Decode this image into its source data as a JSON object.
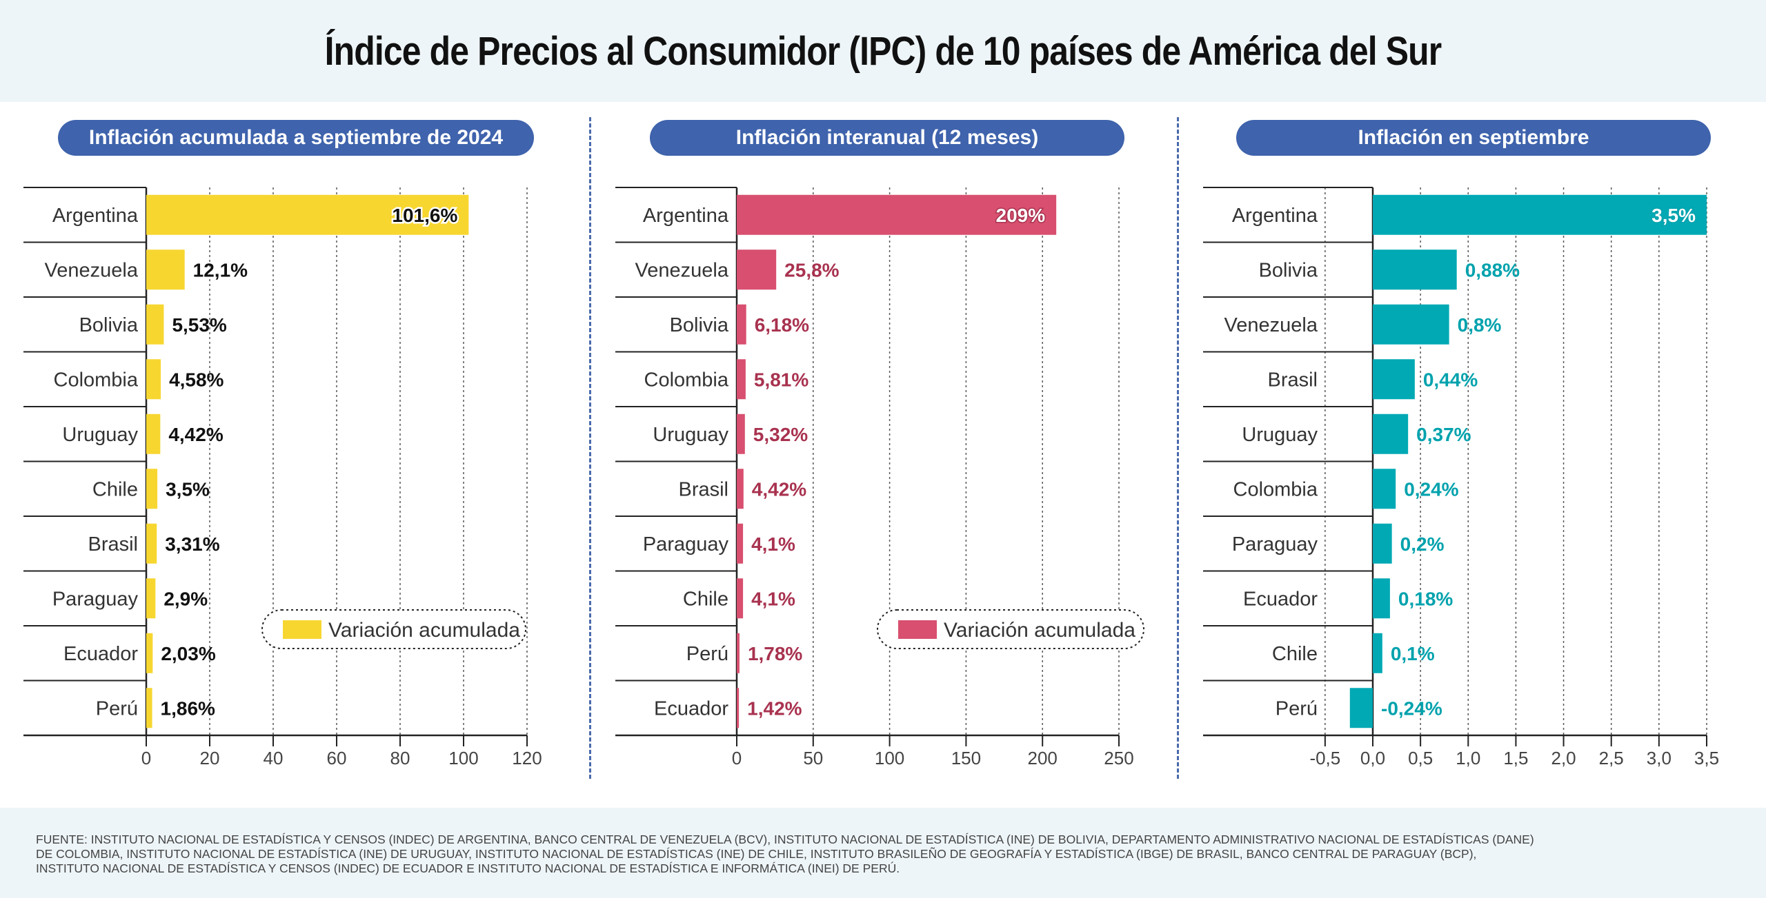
{
  "title": "Índice de Precios al Consumidor (IPC) de 10 países de América del Sur",
  "source": "FUENTE: INSTITUTO NACIONAL DE ESTADÍSTICA Y CENSOS (INDEC) DE ARGENTINA, BANCO CENTRAL DE VENEZUELA (BCV), INSTITUTO NACIONAL DE ESTADÍSTICA (INE) DE BOLIVIA, DEPARTAMENTO ADMINISTRATIVO NACIONAL DE ESTADÍSTICAS (DANE) DE COLOMBIA, INSTITUTO NACIONAL DE ESTADÍSTICA (INE) DE URUGUAY, INSTITUTO NACIONAL DE ESTADÍSTICAS (INE) DE CHILE, INSTITUTO BRASILEÑO DE GEOGRAFÍA Y ESTADÍSTICA (IBGE) DE BRASIL, BANCO CENTRAL DE PARAGUAY (BCP), INSTITUTO NACIONAL DE ESTADÍSTICA Y CENSOS (INDEC) DE ECUADOR E INSTITUTO NACIONAL DE ESTADÍSTICA E INFORMÁTICA (INEI) DE PERÚ.",
  "chart_data": [
    {
      "type": "bar",
      "orientation": "horizontal",
      "title": "Inflación acumulada a septiembre de 2024",
      "categories": [
        "Argentina",
        "Venezuela",
        "Bolivia",
        "Colombia",
        "Uruguay",
        "Chile",
        "Brasil",
        "Paraguay",
        "Ecuador",
        "Perú"
      ],
      "values": [
        101.6,
        12.1,
        5.53,
        4.58,
        4.42,
        3.5,
        3.31,
        2.9,
        2.03,
        1.86
      ],
      "value_labels": [
        "101,6%",
        "12,1%",
        "5,53%",
        "4,58%",
        "4,42%",
        "3,5%",
        "3,31%",
        "2,9%",
        "2,03%",
        "1,86%"
      ],
      "xlim": [
        0,
        120
      ],
      "ticks": [
        0,
        20,
        40,
        60,
        80,
        100,
        120
      ],
      "tick_labels": [
        "0",
        "20",
        "40",
        "60",
        "80",
        "100",
        "120"
      ],
      "grid": true,
      "color": "#f7d630",
      "label_color": "#111111",
      "legend": {
        "label": "Variación acumulada",
        "placement": "bottom-right"
      }
    },
    {
      "type": "bar",
      "orientation": "horizontal",
      "title": "Inflación interanual (12 meses)",
      "categories": [
        "Argentina",
        "Venezuela",
        "Bolivia",
        "Colombia",
        "Uruguay",
        "Brasil",
        "Paraguay",
        "Chile",
        "Perú",
        "Ecuador"
      ],
      "values": [
        209,
        25.8,
        6.18,
        5.81,
        5.32,
        4.42,
        4.1,
        4.1,
        1.78,
        1.42
      ],
      "value_labels": [
        "209%",
        "25,8%",
        "6,18%",
        "5,81%",
        "5,32%",
        "4,42%",
        "4,1%",
        "4,1%",
        "1,78%",
        "1,42%"
      ],
      "xlim": [
        0,
        250
      ],
      "ticks": [
        0,
        50,
        100,
        150,
        200,
        250
      ],
      "tick_labels": [
        "0",
        "50",
        "100",
        "150",
        "200",
        "250"
      ],
      "grid": true,
      "color": "#d84f6f",
      "label_color": "#a8324f",
      "legend": {
        "label": "Variación acumulada",
        "placement": "bottom-right"
      }
    },
    {
      "type": "bar",
      "orientation": "horizontal",
      "title": "Inflación en septiembre",
      "categories": [
        "Argentina",
        "Bolivia",
        "Venezuela",
        "Brasil",
        "Uruguay",
        "Colombia",
        "Paraguay",
        "Ecuador",
        "Chile",
        "Perú"
      ],
      "values": [
        3.5,
        0.88,
        0.8,
        0.44,
        0.37,
        0.24,
        0.2,
        0.18,
        0.1,
        -0.24
      ],
      "value_labels": [
        "3,5%",
        "0,88%",
        "0,8%",
        "0,44%",
        "0,37%",
        "0,24%",
        "0,2%",
        "0,18%",
        "0,1%",
        "-0,24%"
      ],
      "xlim": [
        -0.5,
        3.5
      ],
      "ticks": [
        -0.5,
        0,
        0.5,
        1,
        1.5,
        2,
        2.5,
        3,
        3.5
      ],
      "tick_labels": [
        "-0,5",
        "0,0",
        "0,5",
        "1,0",
        "1,5",
        "2,0",
        "2,5",
        "3,0",
        "3,5"
      ],
      "grid": true,
      "color": "#00a9b4",
      "label_color": "#00a2ad"
    }
  ]
}
